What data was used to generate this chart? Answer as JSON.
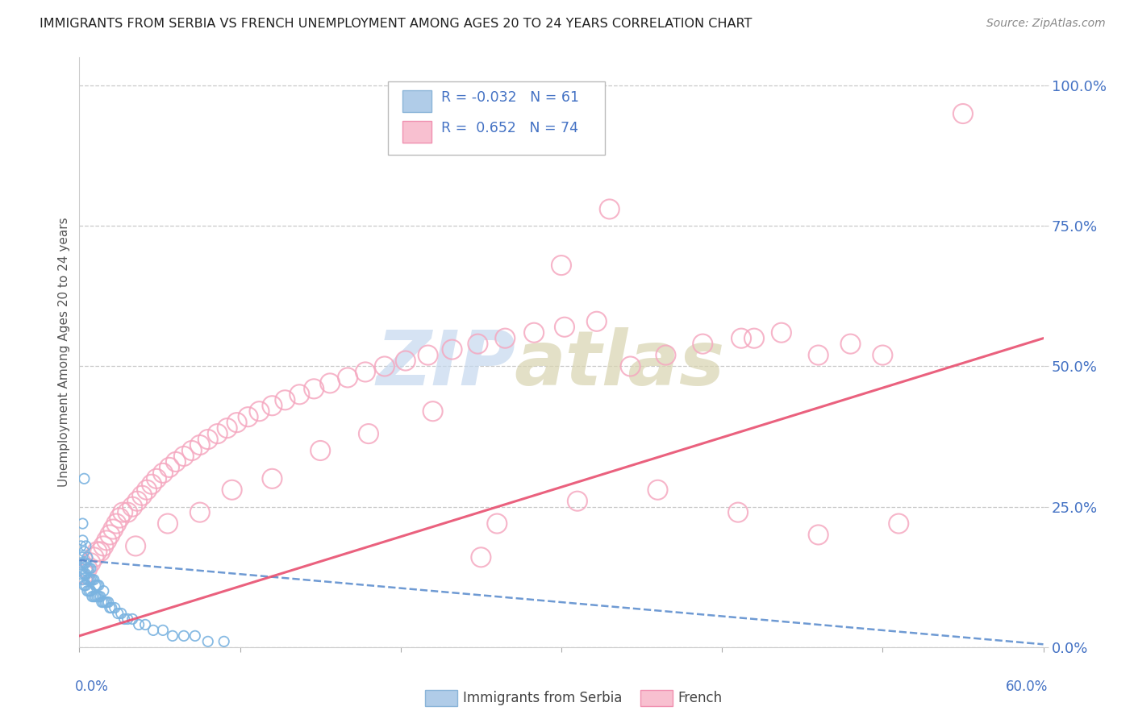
{
  "title": "IMMIGRANTS FROM SERBIA VS FRENCH UNEMPLOYMENT AMONG AGES 20 TO 24 YEARS CORRELATION CHART",
  "source": "Source: ZipAtlas.com",
  "ylabel": "Unemployment Among Ages 20 to 24 years",
  "xlim": [
    0.0,
    0.6
  ],
  "ylim": [
    0.0,
    1.05
  ],
  "yticks": [
    0.0,
    0.25,
    0.5,
    0.75,
    1.0
  ],
  "ytick_labels": [
    "0.0%",
    "25.0%",
    "50.0%",
    "75.0%",
    "100.0%"
  ],
  "serbia_R": -0.032,
  "serbia_N": 61,
  "french_R": 0.652,
  "french_N": 74,
  "serbia_dot_color": "#7ab3e0",
  "serbia_edge_color": "#5b9bd5",
  "french_dot_color": "#f5a8c0",
  "french_edge_color": "#e87098",
  "serbia_line_color": "#5588cc",
  "french_line_color": "#e85070",
  "legend_text_color": "#4472c4",
  "grid_color": "#c8c8c8",
  "serbia_trend_start_y": 0.155,
  "serbia_trend_end_y": 0.005,
  "french_trend_start_y": 0.02,
  "french_trend_end_y": 0.55
}
